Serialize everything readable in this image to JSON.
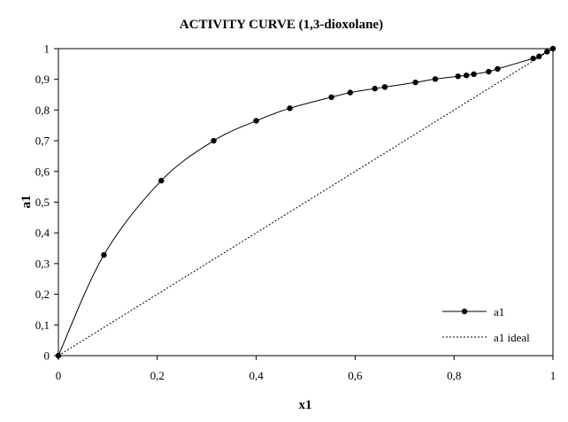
{
  "chart_data": {
    "type": "line",
    "title": "ACTIVITY CURVE (1,3-dioxolane)",
    "xlabel": "x1",
    "ylabel": "a1",
    "xlim": [
      0,
      1
    ],
    "ylim": [
      0,
      1
    ],
    "x_ticks": [
      "0",
      "0,2",
      "0,4",
      "0,6",
      "0,8",
      "1"
    ],
    "x_tick_values": [
      0,
      0.2,
      0.4,
      0.6,
      0.8,
      1
    ],
    "y_ticks": [
      "0",
      "0,1",
      "0,2",
      "0,3",
      "0,4",
      "0,5",
      "0,6",
      "0,7",
      "0,8",
      "0,9",
      "1"
    ],
    "y_tick_values": [
      0,
      0.1,
      0.2,
      0.3,
      0.4,
      0.5,
      0.6,
      0.7,
      0.8,
      0.9,
      1
    ],
    "grid": false,
    "legend_position": "bottom-right",
    "series": [
      {
        "name": "a1",
        "style": "solid-with-markers",
        "color": "#000000",
        "x": [
          0,
          0.092,
          0.208,
          0.314,
          0.4,
          0.468,
          0.552,
          0.59,
          0.64,
          0.66,
          0.722,
          0.762,
          0.808,
          0.825,
          0.84,
          0.87,
          0.888,
          0.96,
          0.972,
          0.988,
          1
        ],
        "y": [
          0,
          0.328,
          0.57,
          0.7,
          0.765,
          0.806,
          0.842,
          0.857,
          0.87,
          0.875,
          0.89,
          0.901,
          0.91,
          0.913,
          0.917,
          0.925,
          0.934,
          0.968,
          0.975,
          0.99,
          1
        ]
      },
      {
        "name": "a1 ideal",
        "style": "dashed",
        "color": "#000000",
        "x": [
          0,
          1
        ],
        "y": [
          0,
          1
        ]
      }
    ]
  }
}
